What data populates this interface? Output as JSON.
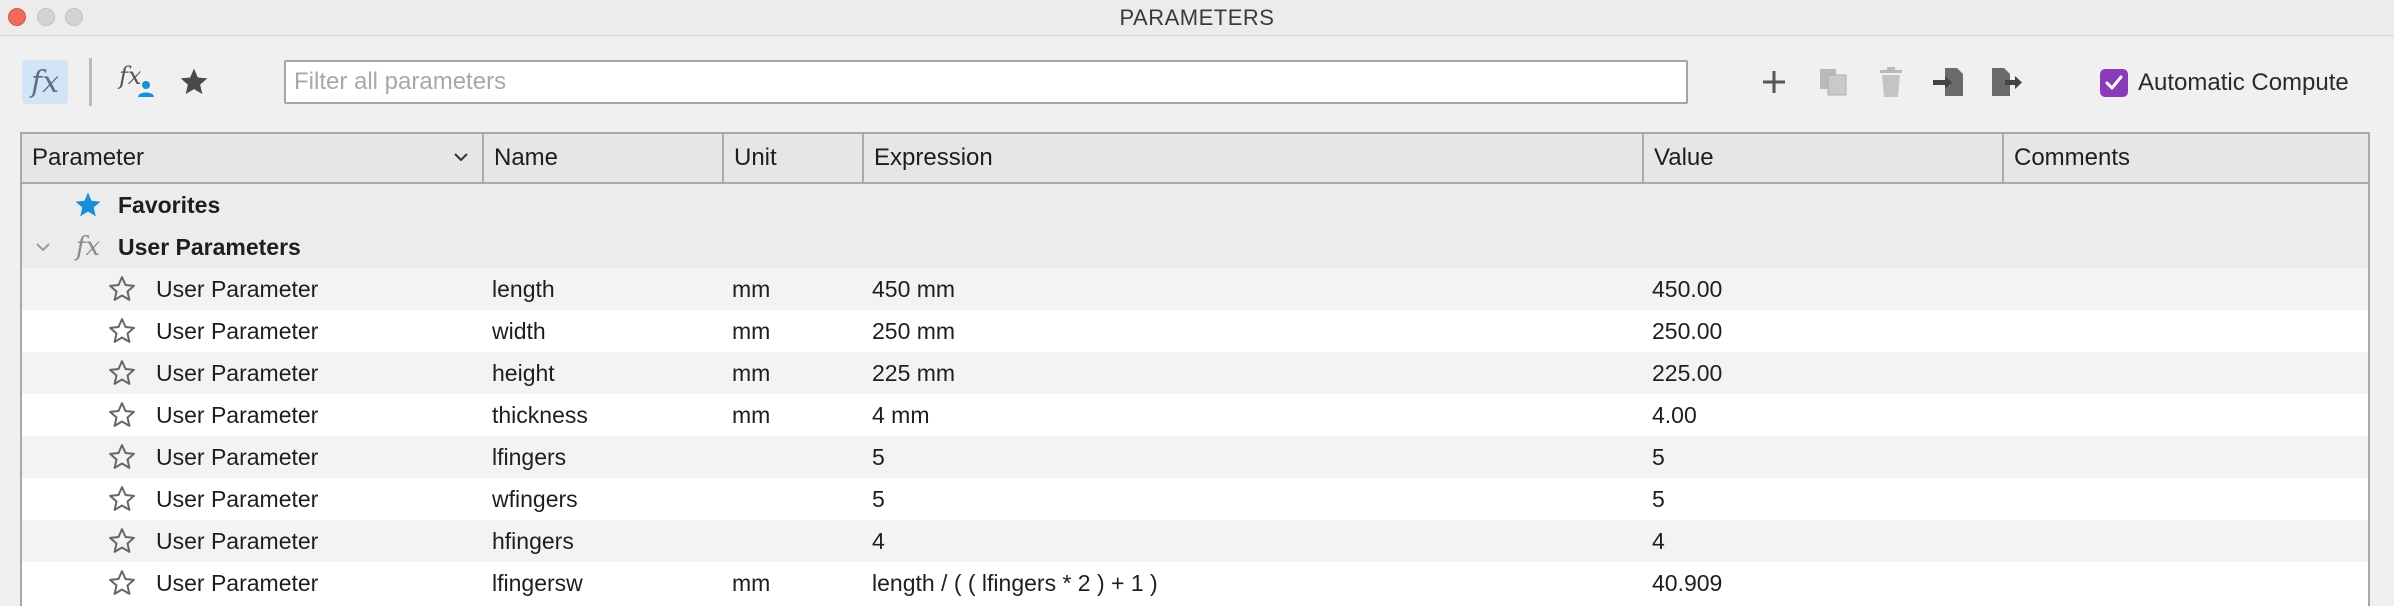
{
  "window": {
    "title": "PARAMETERS"
  },
  "toolbar": {
    "fx_label": "fx",
    "fx_user_label": "fx",
    "filter_placeholder": "Filter all parameters",
    "filter_value": "",
    "automatic_compute_label": "Automatic Compute",
    "automatic_compute_checked": true,
    "accent_color": "#8a3bb8"
  },
  "table": {
    "columns": [
      "Parameter",
      "Name",
      "Unit",
      "Expression",
      "Value",
      "Comments"
    ],
    "groups": {
      "favorites": {
        "label": "Favorites",
        "icon": "star-filled-icon",
        "icon_color": "#1b8fd6"
      },
      "user": {
        "label": "User Parameters",
        "icon": "fx-icon",
        "expanded": true
      }
    },
    "rows": [
      {
        "parameter": "User Parameter",
        "name": "length",
        "unit": "mm",
        "expression": "450 mm",
        "value": "450.00",
        "comments": ""
      },
      {
        "parameter": "User Parameter",
        "name": "width",
        "unit": "mm",
        "expression": "250 mm",
        "value": "250.00",
        "comments": ""
      },
      {
        "parameter": "User Parameter",
        "name": "height",
        "unit": "mm",
        "expression": "225 mm",
        "value": "225.00",
        "comments": ""
      },
      {
        "parameter": "User Parameter",
        "name": "thickness",
        "unit": "mm",
        "expression": "4 mm",
        "value": "4.00",
        "comments": ""
      },
      {
        "parameter": "User Parameter",
        "name": "lfingers",
        "unit": "",
        "expression": "5",
        "value": "5",
        "comments": ""
      },
      {
        "parameter": "User Parameter",
        "name": "wfingers",
        "unit": "",
        "expression": "5",
        "value": "5",
        "comments": ""
      },
      {
        "parameter": "User Parameter",
        "name": "hfingers",
        "unit": "",
        "expression": "4",
        "value": "4",
        "comments": ""
      },
      {
        "parameter": "User Parameter",
        "name": "lfingersw",
        "unit": "mm",
        "expression": "length / ( ( lfingers * 2 ) + 1 )",
        "value": "40.909",
        "comments": ""
      }
    ]
  }
}
